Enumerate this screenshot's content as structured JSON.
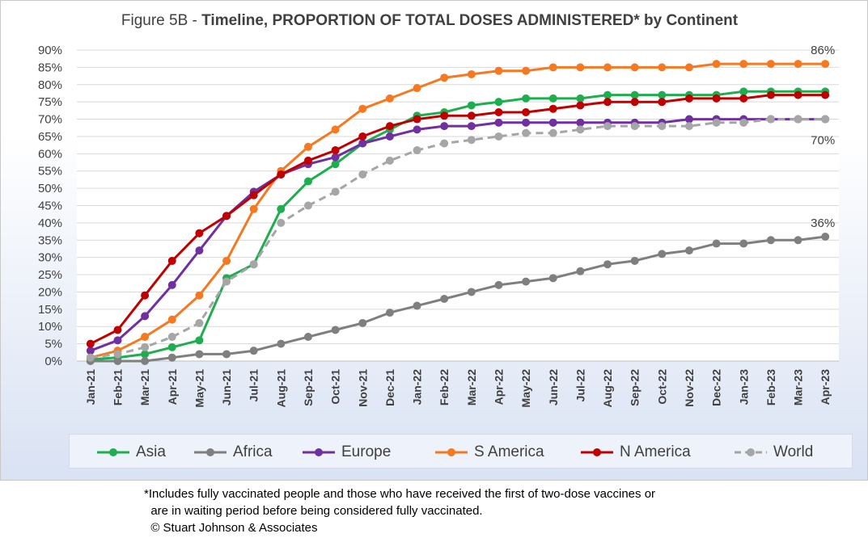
{
  "chart_data": {
    "type": "line",
    "title_prefix": "Figure 5B - ",
    "title_bold": "Timeline, PROPORTION OF TOTAL DOSES ADMINISTERED* by Continent",
    "xlabel": "",
    "ylabel": "",
    "ylim": [
      0,
      90
    ],
    "y_ticks": [
      "0%",
      "5%",
      "10%",
      "15%",
      "20%",
      "25%",
      "30%",
      "35%",
      "40%",
      "45%",
      "50%",
      "55%",
      "60%",
      "65%",
      "70%",
      "75%",
      "80%",
      "85%",
      "90%"
    ],
    "grid": true,
    "legend_position": "bottom",
    "categories": [
      "Jan-21",
      "Feb-21",
      "Mar-21",
      "Apr-21",
      "May-21",
      "Jun-21",
      "Jul-21",
      "Aug-21",
      "Sep-21",
      "Oct-21",
      "Nov-21",
      "Dec-21",
      "Jan-22",
      "Feb-22",
      "Mar-22",
      "Apr-22",
      "May-22",
      "Jun-22",
      "Jul-22",
      "Aug-22",
      "Sep-22",
      "Oct-22",
      "Nov-22",
      "Dec-22",
      "Jan-23",
      "Feb-23",
      "Mar-23",
      "Apr-23"
    ],
    "series": [
      {
        "name": "Asia",
        "color": "#1fae4f",
        "dashed": false,
        "values": [
          0.5,
          1,
          2,
          4,
          6,
          24,
          28,
          44,
          52,
          57,
          63,
          67,
          71,
          72,
          74,
          75,
          76,
          76,
          76,
          77,
          77,
          77,
          77,
          77,
          78,
          78,
          78,
          78
        ]
      },
      {
        "name": "Africa",
        "color": "#7f7f7f",
        "dashed": false,
        "values": [
          0,
          0,
          0,
          1,
          2,
          2,
          3,
          5,
          7,
          9,
          11,
          14,
          16,
          18,
          20,
          22,
          23,
          24,
          26,
          28,
          29,
          31,
          32,
          34,
          34,
          35,
          35,
          36
        ]
      },
      {
        "name": "Europe",
        "color": "#7030a0",
        "dashed": false,
        "values": [
          3,
          6,
          13,
          22,
          32,
          42,
          49,
          54,
          57,
          59,
          63,
          65,
          67,
          68,
          68,
          69,
          69,
          69,
          69,
          69,
          69,
          69,
          70,
          70,
          70,
          70,
          70,
          70
        ]
      },
      {
        "name": "S America",
        "color": "#f47920",
        "dashed": false,
        "values": [
          1,
          3,
          7,
          12,
          19,
          29,
          44,
          55,
          62,
          67,
          73,
          76,
          79,
          82,
          83,
          84,
          84,
          85,
          85,
          85,
          85,
          85,
          85,
          86,
          86,
          86,
          86,
          86
        ]
      },
      {
        "name": "N America",
        "color": "#c00000",
        "dashed": false,
        "values": [
          5,
          9,
          19,
          29,
          37,
          42,
          48,
          54,
          58,
          61,
          65,
          68,
          70,
          71,
          71,
          72,
          72,
          73,
          74,
          75,
          75,
          75,
          76,
          76,
          76,
          77,
          77,
          77
        ]
      },
      {
        "name": "World",
        "color": "#a6a6a6",
        "dashed": true,
        "values": [
          1,
          2,
          4,
          7,
          11,
          23,
          28,
          40,
          45,
          49,
          54,
          58,
          61,
          63,
          64,
          65,
          66,
          66,
          67,
          68,
          68,
          68,
          68,
          69,
          69,
          70,
          70,
          70
        ]
      }
    ],
    "annotations": [
      {
        "text": "86%",
        "series": "S America"
      },
      {
        "text": "70%",
        "series": "World"
      },
      {
        "text": "36%",
        "series": "Africa"
      }
    ]
  },
  "footnote": {
    "line1": "*Includes fully vaccinated people and those who have received the first of two-dose vaccines or",
    "line2": "  are in waiting period before being considered fully vaccinated.",
    "line3": "  © Stuart Johnson & Associates"
  }
}
